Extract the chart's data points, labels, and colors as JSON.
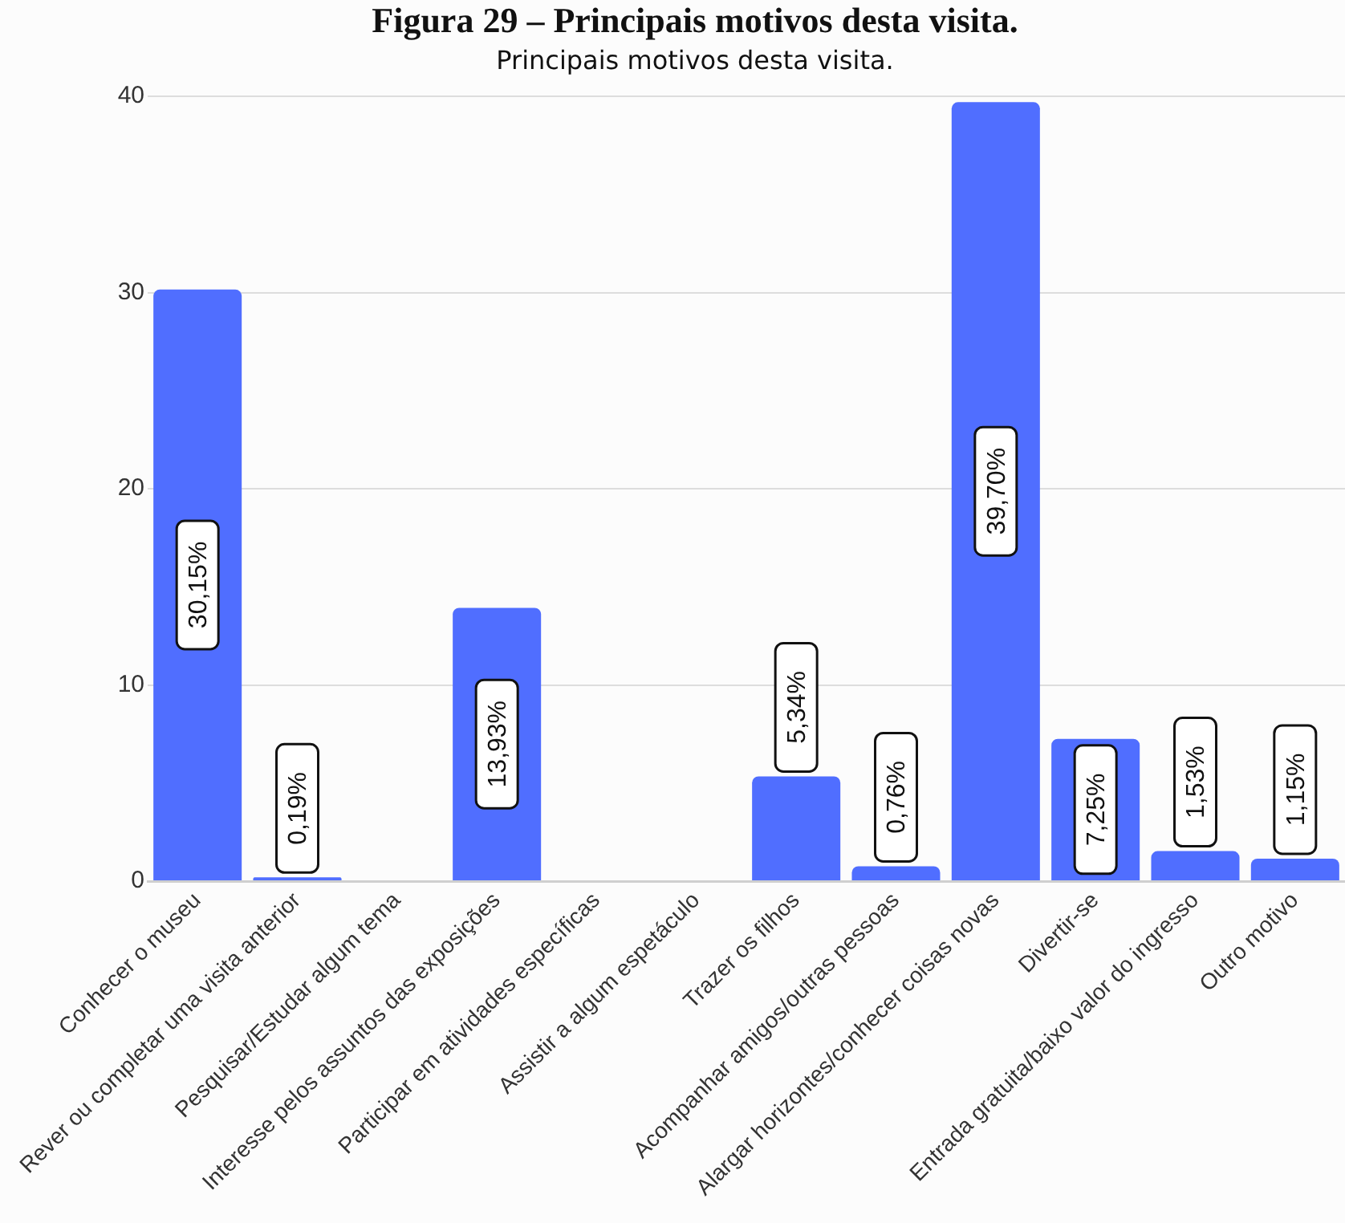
{
  "chart_data": {
    "type": "bar",
    "title": "Figura 29 – Principais motivos desta visita.",
    "subtitle": "Principais motivos desta visita.",
    "categories": [
      "Conhecer o museu",
      "Rever ou completar uma visita anterior",
      "Pesquisar/Estudar algum tema",
      "Interesse pelos assuntos das exposições",
      "Participar em atividades específicas",
      "Assistir a algum espetáculo",
      "Trazer os filhos",
      "Acompanhar amigos/outras pessoas",
      "Alargar horizontes/conhecer coisas novas",
      "Divertir-se",
      "Entrada gratuita/baixo valor do ingresso",
      "Outro motivo"
    ],
    "values": [
      30.15,
      0.19,
      null,
      13.93,
      null,
      null,
      5.34,
      0.76,
      39.7,
      7.25,
      1.53,
      1.15
    ],
    "value_labels": [
      "30,15%",
      "0,19%",
      null,
      "13,93%",
      null,
      null,
      "5,34%",
      "0,76%",
      "39,70%",
      "7,25%",
      "1,53%",
      "1,15%"
    ],
    "color": "#506eff",
    "ylim": [
      0,
      40
    ],
    "yticks": [
      0,
      10,
      20,
      30,
      40
    ],
    "grid": "y"
  }
}
